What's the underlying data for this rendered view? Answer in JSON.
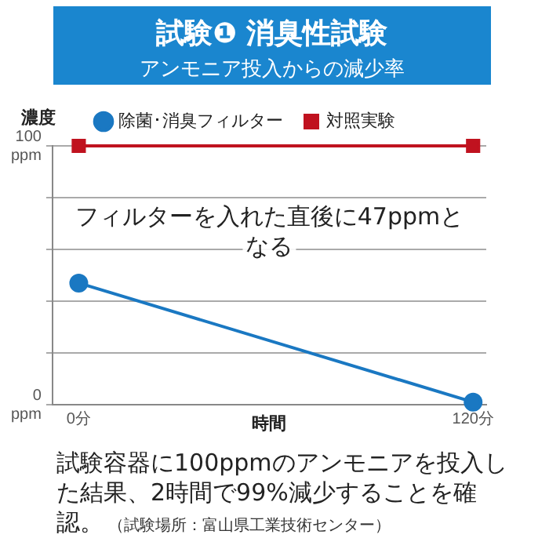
{
  "chart_data": {
    "type": "line",
    "title": "試験❶ 消臭性試験",
    "subtitle": "アンモニア投入からの減少率",
    "xlabel": "時間",
    "ylabel": "濃度",
    "x": [
      0,
      120
    ],
    "series": [
      {
        "name": "除菌･消臭フィルター",
        "color": "#1a78c2",
        "values": [
          47,
          1
        ],
        "marker": "circle"
      },
      {
        "name": "対照実験",
        "color": "#c0121f",
        "values": [
          100,
          100
        ],
        "marker": "square"
      }
    ],
    "xlim": [
      -8,
      124
    ],
    "xticks": [
      {
        "value": 0,
        "label": "0分"
      },
      {
        "value": 120,
        "label": "120分"
      }
    ],
    "ylim": [
      0,
      100
    ],
    "yticks": [
      {
        "value": 0,
        "label": "0\nppm"
      },
      {
        "value": 20,
        "label": null
      },
      {
        "value": 40,
        "label": null
      },
      {
        "value": 60,
        "label": null
      },
      {
        "value": 80,
        "label": null
      },
      {
        "value": 100,
        "label": "100\nppm"
      }
    ],
    "grid": "y",
    "legend": "top",
    "line_style": "solid",
    "annotations": [
      "フィルターを入れた直後に47ppmとなる",
      "試験容器に100ppmのアンモニアを投入した結果、2時間で99%減少することを確認。",
      "（試験場所：富山県工業技術センター）"
    ]
  }
}
